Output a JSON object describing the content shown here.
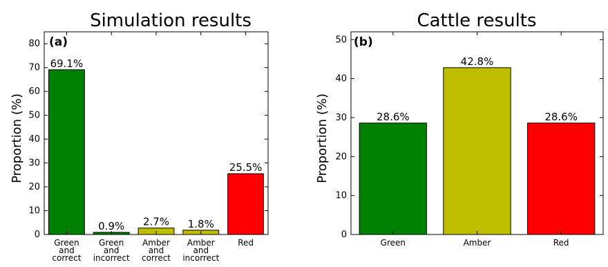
{
  "chart_data": [
    {
      "type": "bar",
      "title": "Simulation results",
      "panel_label": "(a)",
      "ylabel": "Proportion (%)",
      "xlabel": "",
      "ylim": [
        0,
        85
      ],
      "yticks": [
        "0",
        "10",
        "20",
        "30",
        "40",
        "50",
        "60",
        "70",
        "80"
      ],
      "grid": false,
      "categories": [
        [
          "Green",
          "and",
          "correct"
        ],
        [
          "Green",
          "and",
          "incorrect"
        ],
        [
          "Amber",
          "and",
          "correct"
        ],
        [
          "Amber",
          "and",
          "incorrect"
        ],
        [
          "Red"
        ]
      ],
      "values": [
        69.1,
        0.9,
        2.7,
        1.8,
        25.5
      ],
      "value_labels": [
        "69.1%",
        "0.9%",
        "2.7%",
        "1.8%",
        "25.5%"
      ],
      "colors": [
        "#008000",
        "#008000",
        "#bfbf00",
        "#bfbf00",
        "#ff0000"
      ]
    },
    {
      "type": "bar",
      "title": "Cattle results",
      "panel_label": "(b)",
      "ylabel": "Proportion (%)",
      "xlabel": "",
      "ylim": [
        0,
        52
      ],
      "yticks": [
        "0",
        "10",
        "20",
        "30",
        "40",
        "50"
      ],
      "grid": false,
      "categories": [
        [
          "Green"
        ],
        [
          "Amber"
        ],
        [
          "Red"
        ]
      ],
      "values": [
        28.6,
        42.8,
        28.6
      ],
      "value_labels": [
        "28.6%",
        "42.8%",
        "28.6%"
      ],
      "colors": [
        "#008000",
        "#bfbf00",
        "#ff0000"
      ]
    }
  ]
}
